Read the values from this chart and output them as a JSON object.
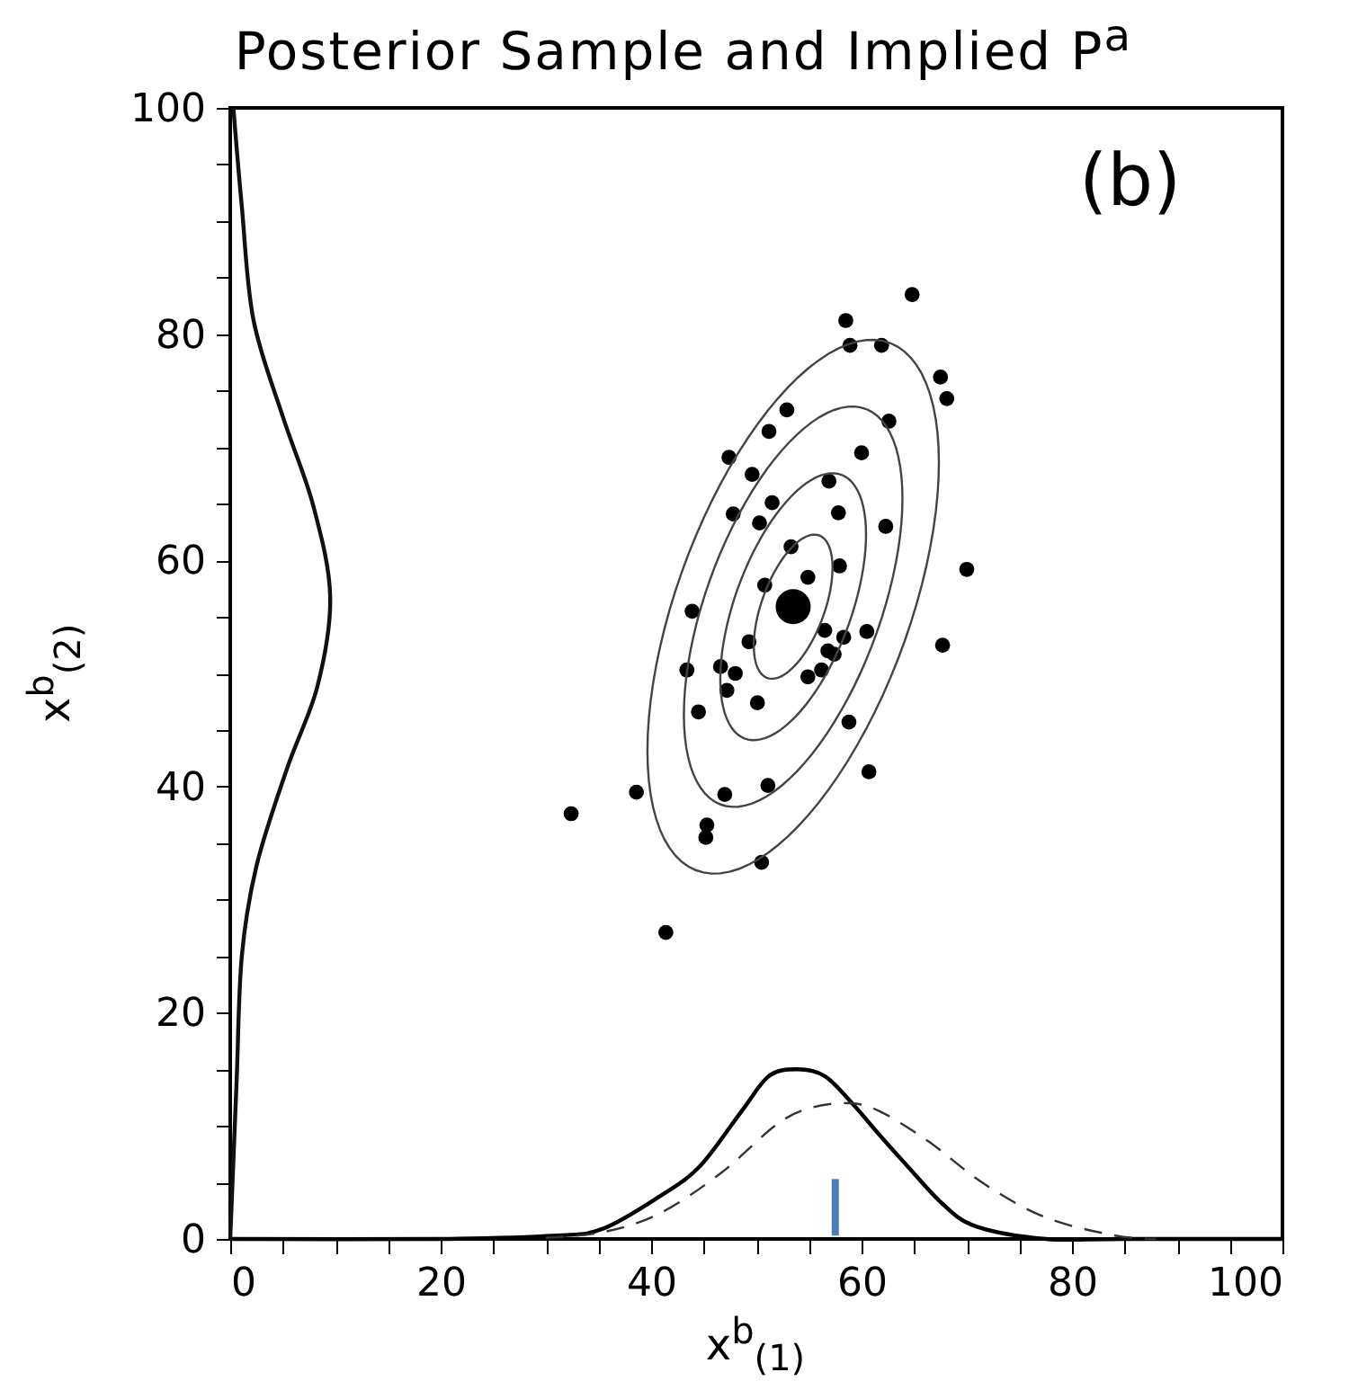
{
  "chart_data": {
    "type": "scatter",
    "title": "Posterior Sample and Implied P$^{a}$",
    "xlabel": "x$^{b}$$_{(1)}$",
    "ylabel": "x$^{b}$$_{(2)}$",
    "annotations": [
      "(b)"
    ],
    "xlim": [
      0,
      100
    ],
    "ylim": [
      0,
      100
    ],
    "xticks": [
      0,
      {
        "value": 5,
        "label": null
      },
      {
        "value": 10,
        "label": null
      },
      {
        "value": 15,
        "label": null
      },
      20,
      {
        "value": 25,
        "label": null
      },
      {
        "value": 30,
        "label": null
      },
      {
        "value": 35,
        "label": null
      },
      40,
      {
        "value": 45,
        "label": null
      },
      {
        "value": 50,
        "label": null
      },
      {
        "value": 55,
        "label": null
      },
      60,
      {
        "value": 65,
        "label": null
      },
      {
        "value": 70,
        "label": null
      },
      {
        "value": 75,
        "label": null
      },
      80,
      {
        "value": 85,
        "label": null
      },
      {
        "value": 90,
        "label": null
      },
      {
        "value": 95,
        "label": null
      },
      100
    ],
    "yticks": [
      0,
      {
        "value": 5,
        "label": null
      },
      {
        "value": 10,
        "label": null
      },
      {
        "value": 15,
        "label": null
      },
      20,
      {
        "value": 25,
        "label": null
      },
      {
        "value": 30,
        "label": null
      },
      {
        "value": 35,
        "label": null
      },
      40,
      {
        "value": 45,
        "label": null
      },
      {
        "value": 50,
        "label": null
      },
      {
        "value": 55,
        "label": null
      },
      60,
      {
        "value": 65,
        "label": null
      },
      {
        "value": 70,
        "label": null
      },
      {
        "value": 75,
        "label": null
      },
      80,
      {
        "value": 85,
        "label": null
      },
      {
        "value": 90,
        "label": null
      },
      {
        "value": 95,
        "label": null
      },
      100
    ],
    "marker": "circle",
    "series": [
      {
        "type": "scatter",
        "color": "#000000",
        "x": [
          64.8,
          58.5,
          58.9,
          61.9,
          67.5,
          68.1,
          52.9,
          62.6,
          51.2,
          47.4,
          60.0,
          49.6,
          56.9,
          51.5,
          47.8,
          50.3,
          57.8,
          62.3,
          53.3,
          70.0,
          54.9,
          57.9,
          50.8,
          43.9,
          56.5,
          58.3,
          60.5,
          49.3,
          67.7,
          56.8,
          57.4,
          43.4,
          46.6,
          48.0,
          56.2,
          54.9,
          47.2,
          50.1,
          44.5,
          58.8,
          60.7,
          51.1,
          47.0,
          38.6,
          32.4,
          45.3,
          45.2,
          50.5,
          41.4
        ],
        "values": [
          83.5,
          81.2,
          79.0,
          79.0,
          76.2,
          74.3,
          73.3,
          72.3,
          71.4,
          69.1,
          69.5,
          67.6,
          67.0,
          65.1,
          64.1,
          63.3,
          64.2,
          63.0,
          61.2,
          59.2,
          58.5,
          59.5,
          57.8,
          55.5,
          53.8,
          53.2,
          53.7,
          52.8,
          52.5,
          52.0,
          51.7,
          50.3,
          50.6,
          50.0,
          50.3,
          49.7,
          48.5,
          47.4,
          46.6,
          45.7,
          41.3,
          40.1,
          39.3,
          39.5,
          37.6,
          36.6,
          35.5,
          33.3,
          27.1
        ]
      },
      {
        "type": "bubble",
        "color": "#000000",
        "x": [
          53.5
        ],
        "values": [
          55.9
        ],
        "sizes": [
          1
        ]
      },
      {
        "type": "line",
        "color": "#000000",
        "marker": "none",
        "x": [
          0,
          20,
          31,
          35.4,
          40.7,
          44.6,
          48.6,
          51.2,
          53.9,
          56.5,
          59.1,
          61.7,
          64.4,
          67.7,
          70.9,
          77.5,
          85,
          100
        ],
        "values": [
          0,
          0,
          0.3,
          0.9,
          3.7,
          6.4,
          11.3,
          14.4,
          15.0,
          14.4,
          12.0,
          9.2,
          6.4,
          3.1,
          1.1,
          0,
          0,
          0
        ]
      },
      {
        "type": "line",
        "color": "#333333",
        "marker": "none",
        "line_style": "dashed",
        "x": [
          30,
          35.4,
          40.7,
          46.6,
          51.9,
          55.2,
          58.8,
          61.7,
          66.4,
          71.6,
          77.5,
          84.1,
          88
        ],
        "values": [
          0.1,
          0.6,
          2.2,
          5.8,
          10.1,
          11.6,
          12.0,
          11.3,
          8.6,
          4.9,
          1.9,
          0.3,
          0
        ]
      },
      {
        "type": "line",
        "color": "#111111",
        "marker": "none",
        "x": [
          0.3,
          1.1,
          2.2,
          5.0,
          7.9,
          9.5,
          8.3,
          5.4,
          2.5,
          1.1,
          0.6,
          0
        ],
        "values": [
          100,
          91.3,
          81.3,
          72.7,
          64.8,
          56.8,
          48.9,
          41.6,
          33.0,
          25.0,
          13.8,
          0
        ]
      },
      {
        "type": "line",
        "color": "#4a7ebb",
        "marker": "none",
        "x": [
          57.5,
          57.5
        ],
        "values": [
          0.3,
          5.3
        ]
      }
    ]
  }
}
